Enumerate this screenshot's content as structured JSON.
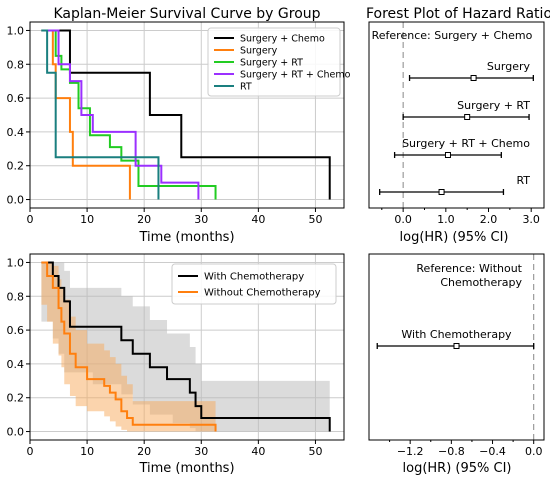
{
  "chart_data": [
    {
      "id": "km_groups",
      "type": "line",
      "title": "Kaplan-Meier Survival Curve by Group",
      "xlabel": "Time (months)",
      "ylabel": "",
      "xlim": [
        0,
        55
      ],
      "ylim": [
        -0.05,
        1.05
      ],
      "xticks": [
        0,
        10,
        20,
        30,
        40,
        50
      ],
      "yticks": [
        0.0,
        0.2,
        0.4,
        0.6,
        0.8,
        1.0
      ],
      "ytick_labels": [
        "0.0",
        "0.2",
        "0.4",
        "0.6",
        "0.8",
        "1.0"
      ],
      "grid": true,
      "legend_placement": "top-right",
      "series": [
        {
          "name": "Surgery + Chemo",
          "color": "#000000",
          "x": [
            2,
            4,
            7,
            16,
            21,
            26.5,
            52.5
          ],
          "y": [
            1.0,
            1.0,
            0.75,
            0.75,
            0.5,
            0.25,
            0.0
          ]
        },
        {
          "name": "Surgery",
          "color": "#ff7f0e",
          "x": [
            2,
            4,
            4.5,
            7,
            7.5,
            17.5
          ],
          "y": [
            1.0,
            0.8,
            0.6,
            0.4,
            0.2,
            0.0
          ]
        },
        {
          "name": "Surgery + RT",
          "color": "#22cc22",
          "x": [
            2,
            4.5,
            5.5,
            7,
            8.5,
            10.5,
            14,
            16,
            19,
            28.5,
            32.5
          ],
          "y": [
            1.0,
            0.85,
            0.77,
            0.69,
            0.54,
            0.38,
            0.31,
            0.23,
            0.08,
            0.08,
            0.0
          ]
        },
        {
          "name": "Surgery + RT + Chemo",
          "color": "#9b30ff",
          "x": [
            2,
            5,
            7,
            9,
            11,
            18.5,
            23,
            29.5
          ],
          "y": [
            1.0,
            0.8,
            0.7,
            0.5,
            0.4,
            0.2,
            0.1,
            0.0
          ]
        },
        {
          "name": "RT",
          "color": "#1a7f7f",
          "x": [
            2,
            3,
            4.5,
            15.5,
            22.5
          ],
          "y": [
            1.0,
            0.75,
            0.25,
            0.25,
            0.0
          ]
        }
      ]
    },
    {
      "id": "forest_groups",
      "type": "scatter",
      "title": "Forest Plot of Hazard Ratio",
      "xlabel": "log(HR) (95% CI)",
      "ylabel": "",
      "xlim": [
        -0.8,
        3.3
      ],
      "xticks": [
        0.0,
        1.0,
        2.0,
        3.0
      ],
      "xtick_labels": [
        "0.0",
        "1.0",
        "2.0",
        "3.0"
      ],
      "minor_xticks": [
        -0.5,
        0.5,
        1.5,
        2.5
      ],
      "annotation": "Reference: Surgery + Chemo",
      "reference_line": 0,
      "rows": [
        {
          "label": "Surgery",
          "est": 1.65,
          "lo": 0.15,
          "hi": 3.05
        },
        {
          "label": "Surgery + RT",
          "est": 1.5,
          "lo": 0.0,
          "hi": 2.95
        },
        {
          "label": "Surgery + RT + Chemo",
          "est": 1.05,
          "lo": -0.2,
          "hi": 2.3
        },
        {
          "label": "RT",
          "est": 0.9,
          "lo": -0.55,
          "hi": 2.35
        }
      ]
    },
    {
      "id": "km_chemo",
      "type": "line",
      "title": "",
      "xlabel": "Time (months)",
      "ylabel": "",
      "xlim": [
        0,
        55
      ],
      "ylim": [
        -0.05,
        1.05
      ],
      "xticks": [
        0,
        10,
        20,
        30,
        40,
        50
      ],
      "yticks": [
        0.0,
        0.2,
        0.4,
        0.6,
        0.8,
        1.0
      ],
      "ytick_labels": [
        "0.0",
        "0.2",
        "0.4",
        "0.6",
        "0.8",
        "1.0"
      ],
      "grid": true,
      "legend_placement": "top-right",
      "series": [
        {
          "name": "With Chemotherapy",
          "color": "#000000",
          "band_color": "#b8b8b8",
          "x": [
            2,
            4,
            5,
            6,
            7,
            11,
            16,
            18,
            21,
            24,
            25,
            28,
            29,
            30,
            52.5
          ],
          "y": [
            1.0,
            0.92,
            0.85,
            0.77,
            0.62,
            0.62,
            0.54,
            0.46,
            0.38,
            0.31,
            0.31,
            0.23,
            0.15,
            0.08,
            0.0
          ],
          "lo": [
            1.0,
            0.65,
            0.55,
            0.46,
            0.35,
            0.35,
            0.28,
            0.22,
            0.16,
            0.1,
            0.1,
            0.05,
            0.02,
            0.0,
            0.0
          ],
          "hi": [
            1.0,
            1.0,
            1.0,
            0.95,
            0.85,
            0.85,
            0.8,
            0.74,
            0.66,
            0.58,
            0.58,
            0.5,
            0.4,
            0.3,
            0.3
          ]
        },
        {
          "name": "Without Chemotherapy",
          "color": "#ff7f0e",
          "band_color": "#f7a95c",
          "x": [
            2,
            3,
            4,
            5,
            5.5,
            6,
            7,
            8,
            10,
            13,
            14,
            15,
            16,
            17,
            18,
            28,
            32.5
          ],
          "y": [
            1.0,
            0.92,
            0.85,
            0.73,
            0.65,
            0.58,
            0.46,
            0.38,
            0.31,
            0.27,
            0.23,
            0.19,
            0.12,
            0.08,
            0.04,
            0.04,
            0.0
          ],
          "lo": [
            1.0,
            0.75,
            0.65,
            0.52,
            0.45,
            0.38,
            0.28,
            0.21,
            0.15,
            0.12,
            0.09,
            0.06,
            0.03,
            0.01,
            0.0,
            0.0,
            0.0
          ],
          "hi": [
            1.0,
            1.0,
            0.98,
            0.9,
            0.85,
            0.78,
            0.68,
            0.6,
            0.52,
            0.48,
            0.44,
            0.4,
            0.33,
            0.28,
            0.18,
            0.18,
            0.18
          ]
        }
      ]
    },
    {
      "id": "forest_chemo",
      "type": "scatter",
      "title": "",
      "xlabel": "log(HR) (95% CI)",
      "ylabel": "",
      "xlim": [
        -1.6,
        0.1
      ],
      "xticks": [
        -1.2,
        -0.8,
        -0.4,
        0.0
      ],
      "xtick_labels": [
        "−1.2",
        "−0.8",
        "−0.4",
        "0.0"
      ],
      "minor_xticks": [
        -1.4,
        -1.0,
        -0.6,
        -0.2
      ],
      "annotation_lines": [
        "Reference: Without",
        "Chemotherapy"
      ],
      "reference_line": 0,
      "rows": [
        {
          "label": "With Chemotherapy",
          "est": -0.75,
          "lo": -1.52,
          "hi": 0.0
        }
      ]
    }
  ]
}
